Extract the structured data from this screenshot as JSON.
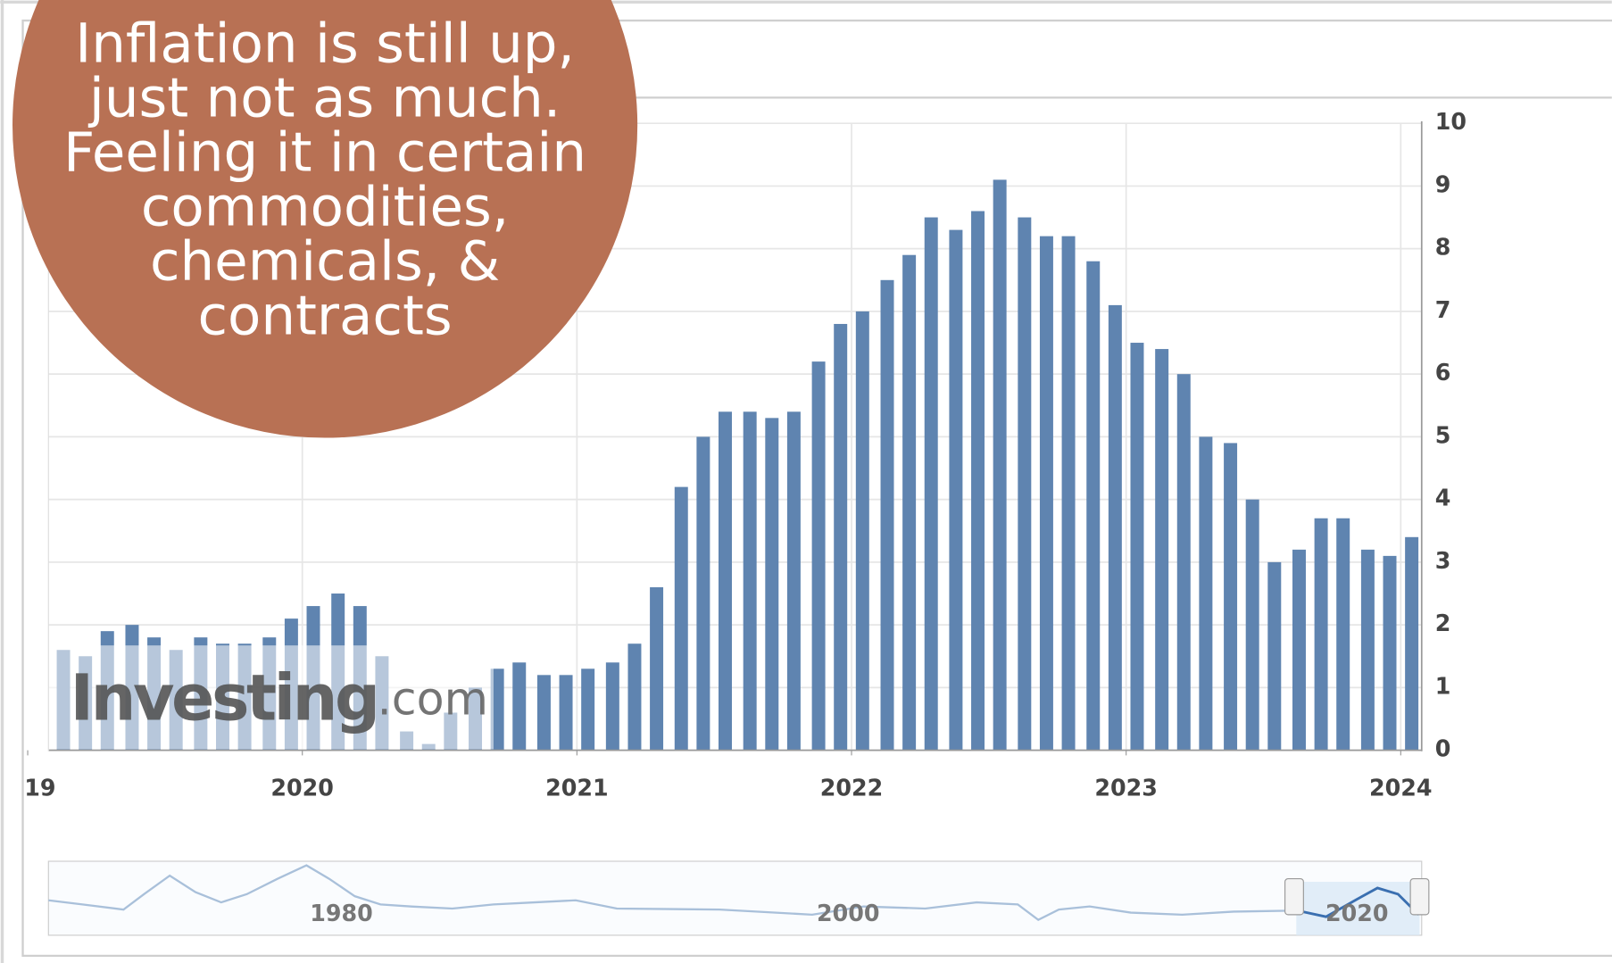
{
  "chart_data": {
    "type": "bar",
    "annotation": [
      "Inflation is still up,",
      "just not as much.",
      "Feeling it in certain",
      "commodities,",
      "chemicals, &",
      "contracts"
    ],
    "watermark": {
      "brand": "Investing",
      "suffix": ".com"
    },
    "navigator_labels": [
      "1980",
      "2000",
      "2020"
    ],
    "x": [
      2019.13,
      2019.21,
      2019.29,
      2019.38,
      2019.46,
      2019.54,
      2019.63,
      2019.71,
      2019.79,
      2019.88,
      2019.96,
      2020.04,
      2020.13,
      2020.21,
      2020.29,
      2020.38,
      2020.46,
      2020.54,
      2020.63,
      2020.71,
      2020.79,
      2020.88,
      2020.96,
      2021.04,
      2021.13,
      2021.21,
      2021.29,
      2021.38,
      2021.46,
      2021.54,
      2021.63,
      2021.71,
      2021.79,
      2021.88,
      2021.96,
      2022.04,
      2022.13,
      2022.21,
      2022.29,
      2022.38,
      2022.46,
      2022.54,
      2022.63,
      2022.71,
      2022.79,
      2022.88,
      2022.96,
      2023.04,
      2023.13,
      2023.21,
      2023.29,
      2023.38,
      2023.46,
      2023.54,
      2023.63,
      2023.71,
      2023.79,
      2023.88,
      2023.96,
      2024.04
    ],
    "values": [
      1.6,
      1.5,
      1.9,
      2.0,
      1.8,
      1.6,
      1.8,
      1.7,
      1.7,
      1.8,
      2.1,
      2.3,
      2.5,
      2.3,
      1.5,
      0.3,
      0.1,
      0.6,
      1.0,
      1.3,
      1.4,
      1.2,
      1.2,
      1.3,
      1.4,
      1.7,
      2.6,
      4.2,
      5.0,
      5.4,
      5.4,
      5.3,
      5.4,
      6.2,
      6.8,
      7.0,
      7.5,
      7.9,
      8.5,
      8.3,
      8.6,
      9.1,
      8.5,
      8.2,
      8.2,
      7.8,
      7.1,
      6.5,
      6.4,
      6.0,
      5.0,
      4.9,
      4.0,
      3.0,
      3.2,
      3.7,
      3.7,
      3.2,
      3.1,
      3.4
    ],
    "color": "#5f84b0",
    "xlim": [
      2019.0,
      2024.08
    ],
    "xticks": [
      {
        "value": 2019,
        "label": "19"
      },
      2020,
      2021,
      2022,
      2023,
      2024
    ],
    "ylim": [
      0,
      10
    ],
    "yticks": [
      0,
      1,
      2,
      3,
      4,
      5,
      6,
      7,
      8,
      9,
      10
    ],
    "grid": true
  }
}
